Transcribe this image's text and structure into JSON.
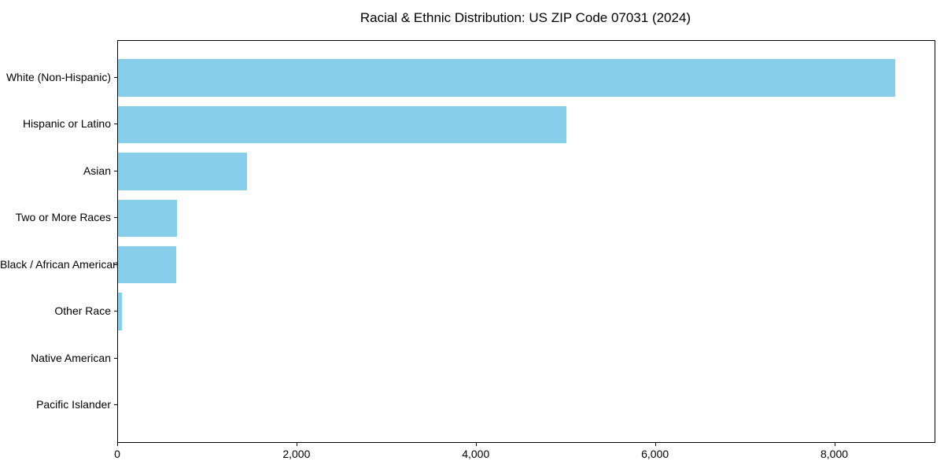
{
  "chart_data": {
    "type": "bar",
    "orientation": "horizontal",
    "title": "Racial & Ethnic Distribution: US ZIP Code 07031 (2024)",
    "categories": [
      "White (Non-Hispanic)",
      "Hispanic or Latino",
      "Asian",
      "Two or More Races",
      "Black / African American",
      "Other Race",
      "Native American",
      "Pacific Islander"
    ],
    "values": [
      8675,
      5000,
      1440,
      655,
      650,
      40,
      0,
      0
    ],
    "xlabel": "",
    "ylabel": "",
    "x_ticks": [
      0,
      2000,
      4000,
      6000,
      8000
    ],
    "x_tick_labels": [
      "0",
      "2,000",
      "4,000",
      "6,000",
      "8,000"
    ],
    "xlim": [
      0,
      9110
    ],
    "grid": false,
    "legend_position": "none",
    "bar_color": "#87CEEB",
    "axis_color": "#000000",
    "text_color": "#000000",
    "background_color": "#ffffff"
  }
}
